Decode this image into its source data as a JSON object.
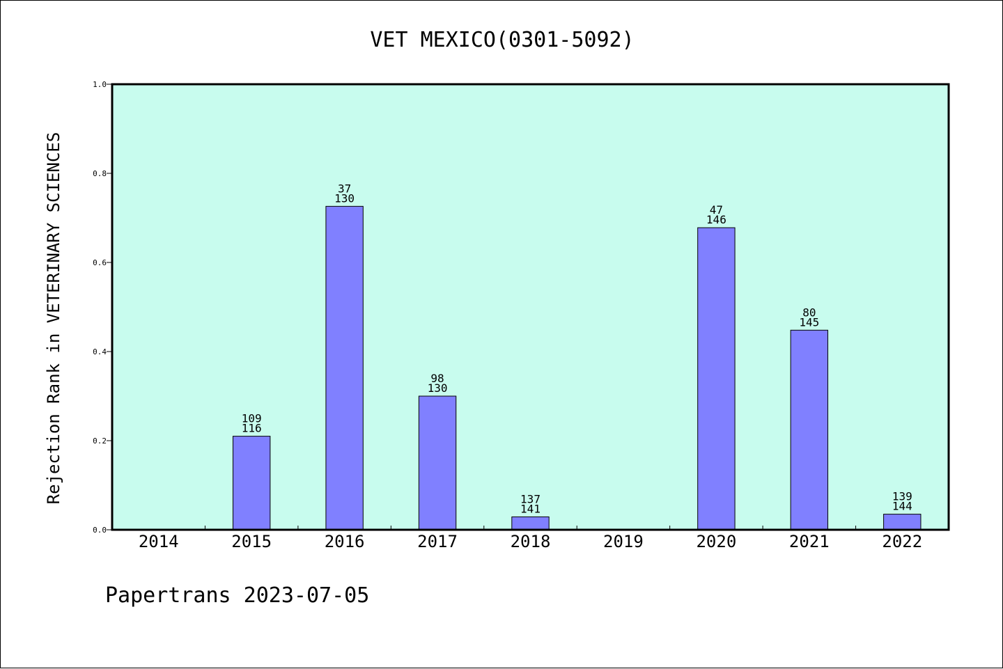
{
  "chart_data": {
    "type": "bar",
    "title": "VET MEXICO(0301-5092)",
    "ylabel": "Rejection Rank in VETERINARY SCIENCES",
    "xlabel": "",
    "categories": [
      "2014",
      "2015",
      "2016",
      "2017",
      "2018",
      "2019",
      "2020",
      "2021",
      "2022"
    ],
    "values": [
      null,
      0.21,
      0.726,
      0.3,
      0.029,
      null,
      0.678,
      0.448,
      0.035
    ],
    "label_top": [
      "",
      "109",
      "37",
      "98",
      "137",
      "",
      "47",
      "80",
      "139"
    ],
    "label_bottom": [
      "",
      "116",
      "130",
      "130",
      "141",
      "",
      "146",
      "145",
      "144"
    ],
    "ylim": [
      0,
      1
    ],
    "yticks": [
      "0.0",
      "0.2",
      "0.4",
      "0.6",
      "0.8",
      "1.0"
    ],
    "grid": false,
    "colors": {
      "plot_background": "#c8fcee",
      "bar_fill": "#8080ff",
      "bar_stroke": "#000000"
    }
  },
  "footer": {
    "text": "Papertrans 2023-07-05"
  }
}
